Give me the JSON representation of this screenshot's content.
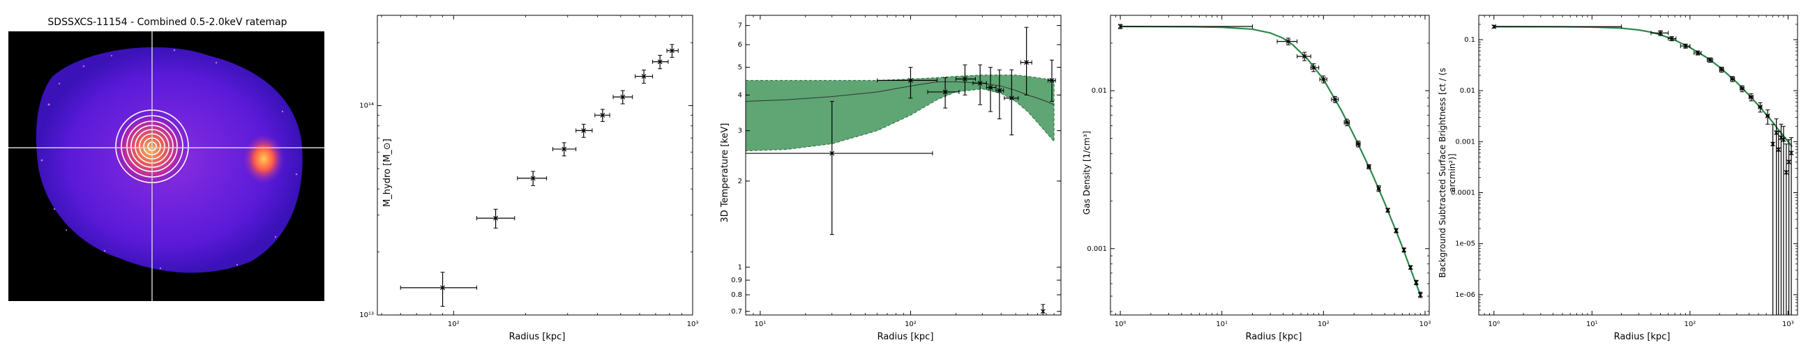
{
  "ratemap": {
    "title": "SDSSXCS-11154 - Combined 0.5-2.0keV ratemap"
  },
  "chart_data": [
    {
      "type": "scatter",
      "xlabel": "Radius [kpc]",
      "ylabel": "M_hydro [M_⊙]",
      "xscale": "log",
      "yscale": "log",
      "xlim": [
        48,
        1000
      ],
      "ylim": [
        10000000000000.0,
        270000000000000.0
      ],
      "xticks": [
        {
          "v": 100,
          "label": "10²"
        },
        {
          "v": 1000,
          "label": "10³"
        }
      ],
      "yticks": [
        {
          "v": 10000000000000.0,
          "label": "10¹³"
        },
        {
          "v": 100000000000000.0,
          "label": "10¹⁴"
        }
      ],
      "points": [
        {
          "x": 90,
          "y": 13500000000000.0,
          "xerr": [
            60,
            125
          ],
          "yerr": [
            11000000000000.0,
            16000000000000.0
          ]
        },
        {
          "x": 150,
          "y": 29000000000000.0,
          "xerr": [
            125,
            180
          ],
          "yerr": [
            26000000000000.0,
            32000000000000.0
          ]
        },
        {
          "x": 215,
          "y": 45000000000000.0,
          "xerr": [
            185,
            245
          ],
          "yerr": [
            41500000000000.0,
            48500000000000.0
          ]
        },
        {
          "x": 290,
          "y": 62000000000000.0,
          "xerr": [
            260,
            325
          ],
          "yerr": [
            57500000000000.0,
            66500000000000.0
          ]
        },
        {
          "x": 350,
          "y": 76000000000000.0,
          "xerr": [
            325,
            380
          ],
          "yerr": [
            70500000000000.0,
            81500000000000.0
          ]
        },
        {
          "x": 420,
          "y": 90000000000000.0,
          "xerr": [
            390,
            450
          ],
          "yerr": [
            84000000000000.0,
            96000000000000.0
          ]
        },
        {
          "x": 510,
          "y": 110000000000000.0,
          "xerr": [
            465,
            560
          ],
          "yerr": [
            102000000000000.0,
            118000000000000.0
          ]
        },
        {
          "x": 625,
          "y": 138000000000000.0,
          "xerr": [
            575,
            680
          ],
          "yerr": [
            128000000000000.0,
            148000000000000.0
          ]
        },
        {
          "x": 730,
          "y": 162000000000000.0,
          "xerr": [
            680,
            790
          ],
          "yerr": [
            150000000000000.0,
            174000000000000.0
          ]
        },
        {
          "x": 820,
          "y": 183000000000000.0,
          "xerr": [
            780,
            870
          ],
          "yerr": [
            170000000000000.0,
            196000000000000.0
          ]
        }
      ]
    },
    {
      "type": "scatter",
      "xlabel": "Radius [kpc]",
      "ylabel": "3D Temperature [keV]",
      "xscale": "log",
      "yscale": "log",
      "xlim": [
        8,
        1000
      ],
      "ylim": [
        0.68,
        7.6
      ],
      "xticks": [
        {
          "v": 10,
          "label": "10¹"
        },
        {
          "v": 100,
          "label": "10²"
        }
      ],
      "yticks": [
        {
          "v": 0.7,
          "label": "0.7"
        },
        {
          "v": 0.8,
          "label": "0.8"
        },
        {
          "v": 0.9,
          "label": "0.9"
        },
        {
          "v": 1,
          "label": "1"
        },
        {
          "v": 2,
          "label": "2"
        },
        {
          "v": 3,
          "label": "3"
        },
        {
          "v": 4,
          "label": "4"
        },
        {
          "v": 5,
          "label": "5"
        },
        {
          "v": 6,
          "label": "6"
        },
        {
          "v": 7,
          "label": "7"
        }
      ],
      "model_band": {
        "x": [
          8,
          15,
          30,
          60,
          100,
          150,
          200,
          300,
          400,
          500,
          600,
          700,
          800,
          900
        ],
        "lower": [
          2.55,
          2.58,
          2.7,
          3.0,
          3.4,
          3.85,
          4.1,
          4.2,
          4.05,
          3.8,
          3.5,
          3.2,
          2.95,
          2.75
        ],
        "median": [
          3.8,
          3.85,
          3.95,
          4.1,
          4.3,
          4.45,
          4.45,
          4.4,
          4.3,
          4.15,
          4.0,
          3.9,
          3.8,
          3.7
        ],
        "upper": [
          4.5,
          4.5,
          4.5,
          4.5,
          4.55,
          4.6,
          4.65,
          4.7,
          4.7,
          4.7,
          4.65,
          4.6,
          4.55,
          4.5
        ]
      },
      "points": [
        {
          "x": 30,
          "y": 2.5,
          "xerr": [
            8,
            140
          ],
          "yerr": [
            1.3,
            3.8
          ]
        },
        {
          "x": 100,
          "y": 4.5,
          "xerr": [
            60,
            150
          ],
          "yerr": [
            3.9,
            5.0
          ]
        },
        {
          "x": 170,
          "y": 4.1,
          "xerr": [
            130,
            210
          ],
          "yerr": [
            3.6,
            4.6
          ]
        },
        {
          "x": 230,
          "y": 4.55,
          "xerr": [
            200,
            270
          ],
          "yerr": [
            4.0,
            5.1
          ]
        },
        {
          "x": 290,
          "y": 4.4,
          "xerr": [
            260,
            320
          ],
          "yerr": [
            3.7,
            5.1
          ]
        },
        {
          "x": 340,
          "y": 4.25,
          "xerr": [
            320,
            370
          ],
          "yerr": [
            3.5,
            5.0
          ]
        },
        {
          "x": 390,
          "y": 4.15,
          "xerr": [
            370,
            415
          ],
          "yerr": [
            3.3,
            4.9
          ]
        },
        {
          "x": 470,
          "y": 3.9,
          "xerr": [
            420,
            520
          ],
          "yerr": [
            2.9,
            4.9
          ]
        },
        {
          "x": 590,
          "y": 5.2,
          "xerr": [
            540,
            640
          ],
          "yerr": [
            4.0,
            6.9
          ]
        },
        {
          "x": 760,
          "y": 0.7,
          "xerr": [
            760,
            760
          ],
          "yerr": [
            0.66,
            0.74
          ]
        },
        {
          "x": 870,
          "y": 4.5,
          "xerr": [
            820,
            920
          ],
          "yerr": [
            3.8,
            5.3
          ]
        }
      ]
    },
    {
      "type": "line",
      "xlabel": "Radius [kpc]",
      "ylabel": "Gas Density [1/cm³]",
      "xscale": "log",
      "yscale": "log",
      "xlim": [
        0.8,
        1100
      ],
      "ylim": [
        0.00038,
        0.03
      ],
      "xticks": [
        {
          "v": 1,
          "label": "10⁰"
        },
        {
          "v": 10,
          "label": "10¹"
        },
        {
          "v": 100,
          "label": "10²"
        },
        {
          "v": 1000,
          "label": "10³"
        }
      ],
      "yticks": [
        {
          "v": 0.001,
          "label": "0.001"
        },
        {
          "v": 0.01,
          "label": "0.01"
        }
      ],
      "model": {
        "x": [
          1,
          5,
          10,
          20,
          30,
          40,
          50,
          70,
          100,
          150,
          200,
          300,
          400,
          500,
          600,
          700,
          800,
          900
        ],
        "y": [
          0.0255,
          0.0254,
          0.0252,
          0.0245,
          0.0232,
          0.0215,
          0.0195,
          0.0158,
          0.0118,
          0.0075,
          0.0052,
          0.003,
          0.00195,
          0.00137,
          0.00102,
          0.00078,
          0.00062,
          0.00051
        ]
      },
      "points": [
        {
          "x": 1,
          "y": 0.0255,
          "xerr": [
            1,
            20
          ],
          "yerr": [
            0.0247,
            0.0263
          ]
        },
        {
          "x": 45,
          "y": 0.0205,
          "xerr": [
            35,
            55
          ],
          "yerr": [
            0.0195,
            0.0215
          ]
        },
        {
          "x": 65,
          "y": 0.0165,
          "xerr": [
            55,
            75
          ],
          "yerr": [
            0.0155,
            0.0175
          ]
        },
        {
          "x": 80,
          "y": 0.014,
          "xerr": [
            75,
            90
          ],
          "yerr": [
            0.0132,
            0.0148
          ]
        },
        {
          "x": 100,
          "y": 0.0118,
          "xerr": [
            92,
            108
          ],
          "yerr": [
            0.0112,
            0.0124
          ]
        },
        {
          "x": 130,
          "y": 0.0088,
          "xerr": [
            120,
            140
          ],
          "yerr": [
            0.0084,
            0.0092
          ]
        },
        {
          "x": 170,
          "y": 0.0063,
          "xerr": [
            160,
            180
          ],
          "yerr": [
            0.006,
            0.0066
          ]
        },
        {
          "x": 220,
          "y": 0.0046,
          "xerr": [
            210,
            230
          ],
          "yerr": [
            0.0044,
            0.0048
          ]
        },
        {
          "x": 280,
          "y": 0.0033,
          "xerr": [
            270,
            290
          ],
          "yerr": [
            0.0032,
            0.0034
          ]
        },
        {
          "x": 350,
          "y": 0.0024,
          "xerr": [
            340,
            360
          ],
          "yerr": [
            0.0023,
            0.0025
          ]
        },
        {
          "x": 430,
          "y": 0.00175,
          "xerr": [
            420,
            440
          ],
          "yerr": [
            0.0017,
            0.0018
          ]
        },
        {
          "x": 520,
          "y": 0.0013,
          "xerr": [
            510,
            530
          ],
          "yerr": [
            0.00126,
            0.00134
          ]
        },
        {
          "x": 620,
          "y": 0.00098,
          "xerr": [
            610,
            630
          ],
          "yerr": [
            0.00095,
            0.00101
          ]
        },
        {
          "x": 720,
          "y": 0.00076,
          "xerr": [
            710,
            730
          ],
          "yerr": [
            0.00074,
            0.00078
          ]
        },
        {
          "x": 820,
          "y": 0.00061,
          "xerr": [
            810,
            830
          ],
          "yerr": [
            0.00059,
            0.00063
          ]
        },
        {
          "x": 900,
          "y": 0.00051,
          "xerr": [
            890,
            910
          ],
          "yerr": [
            0.00049,
            0.00053
          ]
        }
      ]
    },
    {
      "type": "line",
      "xlabel": "Radius [kpc]",
      "ylabel": "Background Subtracted Surface Brightness [ct / (s arcmin²)]",
      "xscale": "log",
      "yscale": "log",
      "xlim": [
        0.7,
        1250
      ],
      "ylim": [
        4e-07,
        0.3
      ],
      "xticks": [
        {
          "v": 1,
          "label": "10⁰"
        },
        {
          "v": 10,
          "label": "10¹"
        },
        {
          "v": 100,
          "label": "10²"
        },
        {
          "v": 1000,
          "label": "10³"
        }
      ],
      "yticks": [
        {
          "v": 1e-06,
          "label": "1e-06"
        },
        {
          "v": 1e-05,
          "label": "1e-05"
        },
        {
          "v": 0.0001,
          "label": "0.0001"
        },
        {
          "v": 0.001,
          "label": "0.001"
        },
        {
          "v": 0.01,
          "label": "0.01"
        },
        {
          "v": 0.1,
          "label": "0.1"
        }
      ],
      "model": {
        "x": [
          1,
          5,
          10,
          20,
          30,
          40,
          50,
          70,
          100,
          150,
          200,
          300,
          400,
          500,
          600,
          700,
          800,
          900,
          1000,
          1100
        ],
        "y": [
          0.18,
          0.179,
          0.176,
          0.168,
          0.155,
          0.14,
          0.125,
          0.098,
          0.07,
          0.044,
          0.029,
          0.0145,
          0.0082,
          0.0051,
          0.0034,
          0.0024,
          0.0017,
          0.0013,
          0.001,
          0.0008
        ]
      },
      "points": [
        {
          "x": 1,
          "y": 0.18,
          "xerr": [
            1,
            20
          ],
          "yerr": [
            0.17,
            0.19
          ]
        },
        {
          "x": 50,
          "y": 0.135,
          "xerr": [
            40,
            60
          ],
          "yerr": [
            0.12,
            0.15
          ]
        },
        {
          "x": 65,
          "y": 0.105,
          "xerr": [
            60,
            72
          ],
          "yerr": [
            0.095,
            0.115
          ]
        },
        {
          "x": 90,
          "y": 0.075,
          "xerr": [
            80,
            100
          ],
          "yerr": [
            0.068,
            0.082
          ]
        },
        {
          "x": 120,
          "y": 0.055,
          "xerr": [
            110,
            130
          ],
          "yerr": [
            0.05,
            0.06
          ]
        },
        {
          "x": 160,
          "y": 0.04,
          "xerr": [
            150,
            170
          ],
          "yerr": [
            0.036,
            0.044
          ]
        },
        {
          "x": 210,
          "y": 0.026,
          "xerr": [
            200,
            220
          ],
          "yerr": [
            0.023,
            0.029
          ]
        },
        {
          "x": 270,
          "y": 0.017,
          "xerr": [
            260,
            285
          ],
          "yerr": [
            0.015,
            0.019
          ]
        },
        {
          "x": 340,
          "y": 0.011,
          "xerr": [
            325,
            355
          ],
          "yerr": [
            0.0095,
            0.0125
          ]
        },
        {
          "x": 420,
          "y": 0.0075,
          "xerr": [
            400,
            440
          ],
          "yerr": [
            0.0063,
            0.0087
          ]
        },
        {
          "x": 520,
          "y": 0.0048,
          "xerr": [
            500,
            540
          ],
          "yerr": [
            0.0038,
            0.0058
          ]
        },
        {
          "x": 620,
          "y": 0.0032,
          "xerr": [
            600,
            640
          ],
          "yerr": [
            0.0022,
            0.0042
          ]
        },
        {
          "x": 700,
          "y": 0.0009,
          "xerr": [
            690,
            710
          ],
          "yerr": [
            4e-07,
            0.0022
          ]
        },
        {
          "x": 760,
          "y": 0.0015,
          "xerr": [
            750,
            770
          ],
          "yerr": [
            4e-07,
            0.0028
          ]
        },
        {
          "x": 800,
          "y": 0.0007,
          "xerr": [
            790,
            810
          ],
          "yerr": [
            4e-07,
            0.0016
          ]
        },
        {
          "x": 850,
          "y": 0.0012,
          "xerr": [
            840,
            860
          ],
          "yerr": [
            4e-07,
            0.0022
          ]
        },
        {
          "x": 900,
          "y": 0.0011,
          "xerr": [
            890,
            910
          ],
          "yerr": [
            4e-07,
            0.002
          ]
        },
        {
          "x": 960,
          "y": 0.00025,
          "xerr": [
            950,
            970
          ],
          "yerr": [
            4e-07,
            0.0009
          ]
        },
        {
          "x": 1020,
          "y": 0.0004,
          "xerr": [
            1010,
            1030
          ],
          "yerr": [
            4e-07,
            0.0011
          ]
        },
        {
          "x": 1080,
          "y": 0.0006,
          "xerr": [
            1070,
            1090
          ],
          "yerr": [
            4e-07,
            0.0012
          ]
        }
      ]
    }
  ],
  "colors": {
    "band_fill": "#5fa674",
    "model_line": "#2a8a4a",
    "points": "#000000"
  }
}
